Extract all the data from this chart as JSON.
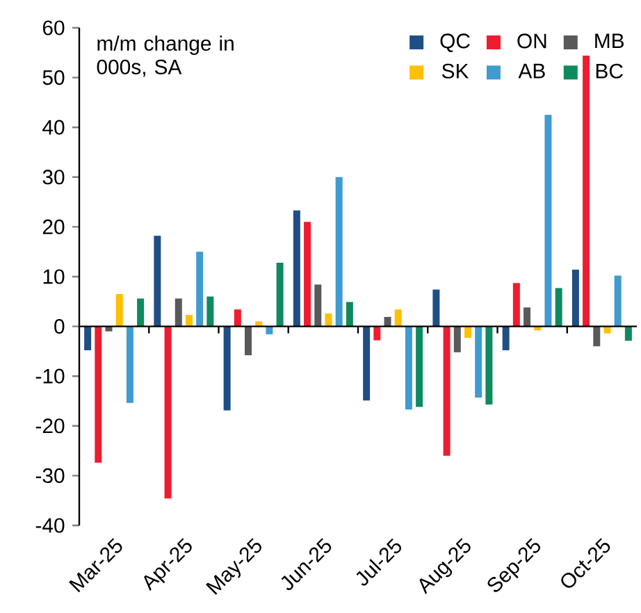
{
  "chart_data": {
    "type": "bar",
    "categories": [
      "Mar-25",
      "Apr-25",
      "May-25",
      "Jun-25",
      "Jul-25",
      "Aug-25",
      "Sep-25",
      "Oct-25"
    ],
    "series": [
      {
        "name": "QC",
        "color": "#1f4e85",
        "values": [
          -4.8,
          18.2,
          -16.9,
          23.3,
          -14.9,
          7.4,
          -4.8,
          11.4
        ]
      },
      {
        "name": "ON",
        "color": "#ee1c2e",
        "values": [
          -27.4,
          -34.6,
          3.4,
          21,
          -2.8,
          -26,
          8.7,
          54.4
        ]
      },
      {
        "name": "MB",
        "color": "#595959",
        "values": [
          -1,
          5.6,
          -5.8,
          8.4,
          1.9,
          -5.2,
          3.8,
          -4
        ]
      },
      {
        "name": "SK",
        "color": "#ffc000",
        "values": [
          6.5,
          2.3,
          1,
          2.6,
          3.4,
          -2.3,
          -0.8,
          -1.4
        ]
      },
      {
        "name": "AB",
        "color": "#3f9bd0",
        "values": [
          -15.4,
          15,
          -1.6,
          30,
          -16.7,
          -14.3,
          42.5,
          10.2
        ]
      },
      {
        "name": "BC",
        "color": "#0e8a5f",
        "values": [
          5.6,
          6,
          12.8,
          4.9,
          -16.2,
          -15.7,
          7.7,
          -2.9
        ]
      }
    ],
    "ylim": [
      -40,
      60
    ],
    "yticks": [
      -40,
      -30,
      -20,
      -10,
      0,
      10,
      20,
      30,
      40,
      50,
      60
    ],
    "legend": "top right",
    "annotations": [
      "m/m change in 000s, SA"
    ]
  }
}
